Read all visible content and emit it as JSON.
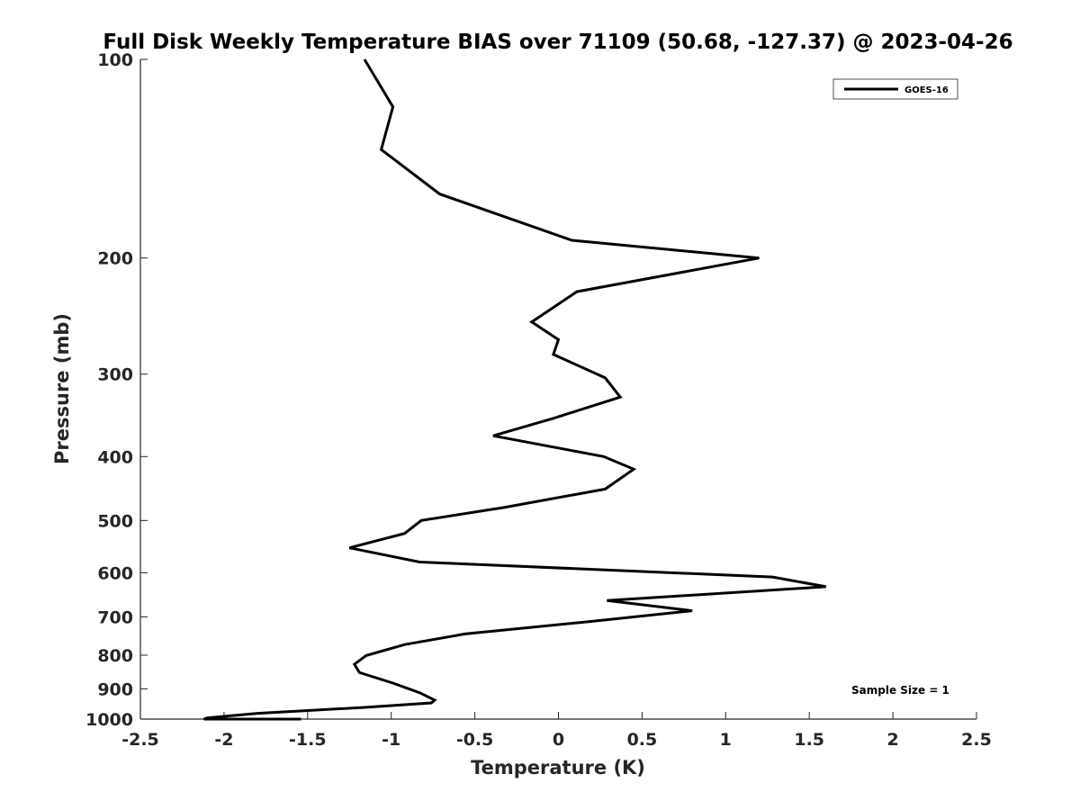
{
  "chart_data": {
    "type": "line",
    "title": "Full Disk Weekly Temperature BIAS over 71109 (50.68, -127.37) @ 2023-04-26",
    "xlabel": "Temperature (K)",
    "ylabel": "Pressure (mb)",
    "xlim": [
      -2.5,
      2.5
    ],
    "ylim": [
      100,
      1000
    ],
    "y_scale": "log",
    "y_reversed": true,
    "x_ticks": [
      -2.5,
      -2,
      -1.5,
      -1,
      -0.5,
      0,
      0.5,
      1,
      1.5,
      2,
      2.5
    ],
    "x_tick_labels": [
      "-2.5",
      "-2",
      "-1.5",
      "-1",
      "-0.5",
      "0",
      "0.5",
      "1",
      "1.5",
      "2",
      "2.5"
    ],
    "y_ticks": [
      100,
      200,
      300,
      400,
      500,
      600,
      700,
      800,
      900,
      1000
    ],
    "y_tick_labels": [
      "100",
      "200",
      "300",
      "400",
      "500",
      "600",
      "700",
      "800",
      "900",
      "1000"
    ],
    "grid": false,
    "legend_position": "top-right",
    "line_color": "#000000",
    "series": [
      {
        "name": "GOES-16",
        "points": [
          {
            "x": -1.16,
            "y": 100
          },
          {
            "x": -0.99,
            "y": 118
          },
          {
            "x": -1.06,
            "y": 137
          },
          {
            "x": -0.71,
            "y": 160
          },
          {
            "x": 0.08,
            "y": 188
          },
          {
            "x": 1.2,
            "y": 200
          },
          {
            "x": 0.11,
            "y": 225
          },
          {
            "x": -0.16,
            "y": 250
          },
          {
            "x": 0,
            "y": 266
          },
          {
            "x": -0.03,
            "y": 280
          },
          {
            "x": 0.28,
            "y": 304
          },
          {
            "x": 0.37,
            "y": 325
          },
          {
            "x": -0.03,
            "y": 350
          },
          {
            "x": -0.39,
            "y": 372
          },
          {
            "x": 0.27,
            "y": 400
          },
          {
            "x": 0.45,
            "y": 418
          },
          {
            "x": 0.28,
            "y": 448
          },
          {
            "x": -0.33,
            "y": 478
          },
          {
            "x": -0.82,
            "y": 500
          },
          {
            "x": -0.92,
            "y": 523
          },
          {
            "x": -1.25,
            "y": 550
          },
          {
            "x": -0.83,
            "y": 578
          },
          {
            "x": 1.28,
            "y": 609
          },
          {
            "x": 1.6,
            "y": 630
          },
          {
            "x": 0.29,
            "y": 661
          },
          {
            "x": 0.8,
            "y": 685
          },
          {
            "x": 0.2,
            "y": 711
          },
          {
            "x": -0.56,
            "y": 743
          },
          {
            "x": -0.92,
            "y": 771
          },
          {
            "x": -1.15,
            "y": 801
          },
          {
            "x": -1.22,
            "y": 826
          },
          {
            "x": -1.19,
            "y": 850
          },
          {
            "x": -0.99,
            "y": 882
          },
          {
            "x": -0.83,
            "y": 912
          },
          {
            "x": -0.74,
            "y": 936
          },
          {
            "x": -0.76,
            "y": 945
          },
          {
            "x": -1.16,
            "y": 960
          },
          {
            "x": -1.8,
            "y": 980
          },
          {
            "x": -2.1,
            "y": 996
          },
          {
            "x": -2.12,
            "y": 1000
          },
          {
            "x": -1.75,
            "y": 1010
          },
          {
            "x": -2.11,
            "y": 1015
          },
          {
            "x": -1.54,
            "y": 1020
          }
        ]
      }
    ],
    "annotations": [
      "Sample Size = 1"
    ]
  }
}
